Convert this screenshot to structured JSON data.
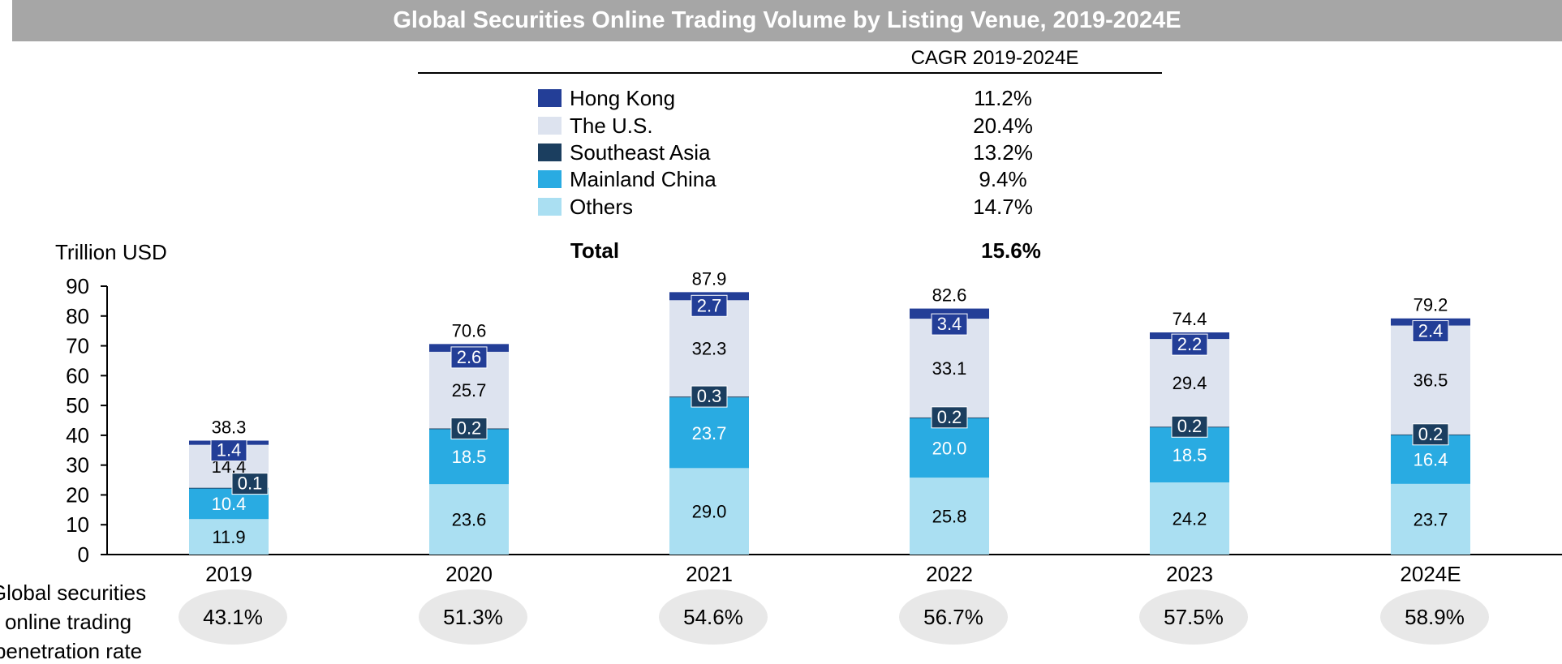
{
  "chart_data": {
    "type": "bar",
    "stacked": true,
    "title": "Global Securities Online Trading Volume by Listing Venue, 2019-2024E",
    "ylabel": "Trillion USD",
    "ylim": [
      0,
      90
    ],
    "yticks": [
      0,
      10,
      20,
      30,
      40,
      50,
      60,
      70,
      80,
      90
    ],
    "categories": [
      "2019",
      "2020",
      "2021",
      "2022",
      "2023",
      "2024E"
    ],
    "series": [
      {
        "name": "Others",
        "color": "#aadff2",
        "label_color": "#000000",
        "values": [
          11.9,
          23.6,
          29.0,
          25.8,
          24.2,
          23.7
        ]
      },
      {
        "name": "Mainland China",
        "color": "#29abe2",
        "label_color": "#ffffff",
        "values": [
          10.4,
          18.5,
          23.7,
          20.0,
          18.5,
          16.4
        ]
      },
      {
        "name": "Southeast Asia",
        "color": "#1b3e5f",
        "label_color": "#ffffff",
        "values": [
          0.1,
          0.2,
          0.3,
          0.2,
          0.2,
          0.2
        ]
      },
      {
        "name": "The U.S.",
        "color": "#dde3ef",
        "label_color": "#000000",
        "values": [
          14.4,
          25.7,
          32.3,
          33.1,
          29.4,
          36.5
        ]
      },
      {
        "name": "Hong Kong",
        "color": "#233e97",
        "label_color": "#ffffff",
        "values": [
          1.4,
          2.6,
          2.7,
          3.4,
          2.2,
          2.4
        ]
      }
    ],
    "totals": [
      "38.3",
      "70.6",
      "87.9",
      "82.6",
      "74.4",
      "79.2"
    ],
    "legend": {
      "cagr_header": "CAGR 2019-2024E",
      "entries": [
        {
          "name": "Hong Kong",
          "color": "#233e97",
          "cagr": "11.2%"
        },
        {
          "name": "The U.S.",
          "color": "#dde3ef",
          "cagr": "20.4%"
        },
        {
          "name": "Southeast Asia",
          "color": "#1b3e5f",
          "cagr": "13.2%"
        },
        {
          "name": "Mainland China",
          "color": "#29abe2",
          "cagr": "9.4%"
        },
        {
          "name": "Others",
          "color": "#aadff2",
          "cagr": "14.7%"
        }
      ],
      "total_label": "Total",
      "total_cagr": "15.6%"
    },
    "penetration": {
      "label_lines": [
        "Global securities",
        "online trading",
        "penetration rate"
      ],
      "values": [
        "43.1%",
        "51.3%",
        "54.6%",
        "56.7%",
        "57.5%",
        "58.9%"
      ]
    }
  }
}
